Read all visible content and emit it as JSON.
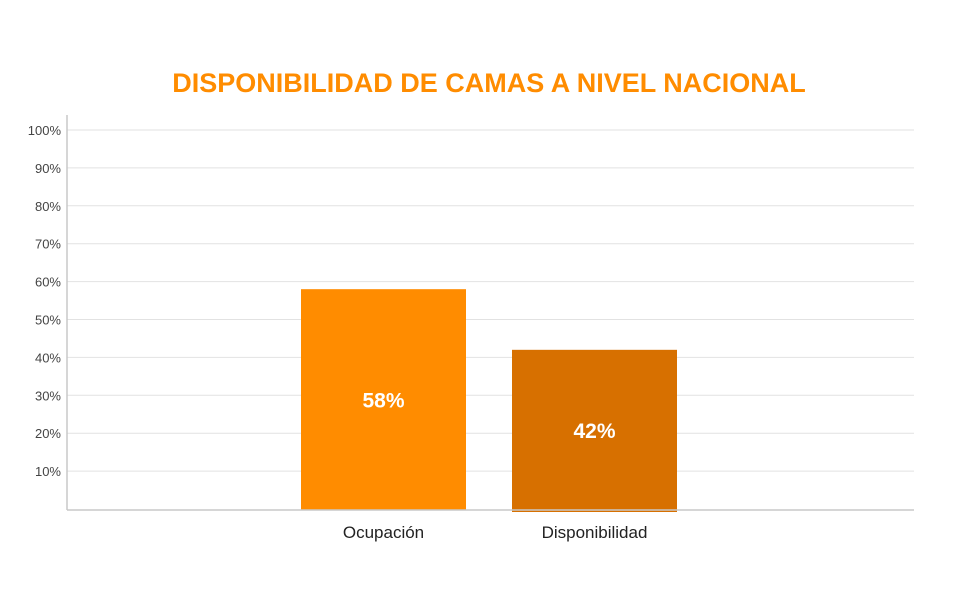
{
  "chart_data": {
    "type": "bar",
    "title": "DISPONIBILIDAD DE CAMAS A NIVEL NACIONAL",
    "xlabel": "",
    "ylabel": "",
    "categories": [
      "Ocupación",
      "Disponibilidad"
    ],
    "values": [
      58,
      42
    ],
    "data_labels": [
      "58%",
      "42%"
    ],
    "ylim": [
      0,
      100
    ],
    "yticks": [
      "10%",
      "20%",
      "30%",
      "40%",
      "50%",
      "60%",
      "70%",
      "80%",
      "90%",
      "100%"
    ],
    "grid": true,
    "legend": "none",
    "colors": {
      "title": "#FF8C00",
      "bars": [
        "#FF8C00",
        "#D77000"
      ],
      "grid": "#e2e2e2",
      "axis": "#c8c8c8"
    }
  }
}
